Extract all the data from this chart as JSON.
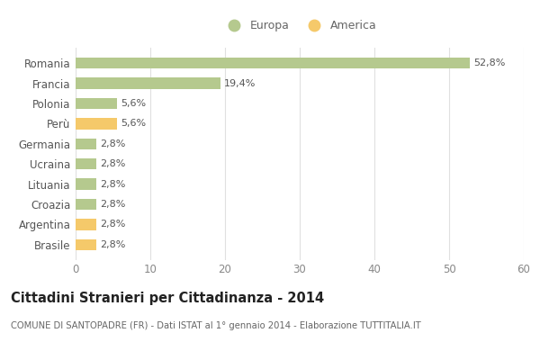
{
  "categories": [
    "Brasile",
    "Argentina",
    "Croazia",
    "Lituania",
    "Ucraina",
    "Germania",
    "Perù",
    "Polonia",
    "Francia",
    "Romania"
  ],
  "values": [
    2.8,
    2.8,
    2.8,
    2.8,
    2.8,
    2.8,
    5.6,
    5.6,
    19.4,
    52.8
  ],
  "labels": [
    "2,8%",
    "2,8%",
    "2,8%",
    "2,8%",
    "2,8%",
    "2,8%",
    "5,6%",
    "5,6%",
    "19,4%",
    "52,8%"
  ],
  "colors": [
    "#f5c96a",
    "#f5c96a",
    "#b5c98e",
    "#b5c98e",
    "#b5c98e",
    "#b5c98e",
    "#f5c96a",
    "#b5c98e",
    "#b5c98e",
    "#b5c98e"
  ],
  "europa_color": "#b5c98e",
  "america_color": "#f5c96a",
  "background_color": "#ffffff",
  "title": "Cittadini Stranieri per Cittadinanza - 2014",
  "subtitle": "COMUNE DI SANTOPADRE (FR) - Dati ISTAT al 1° gennaio 2014 - Elaborazione TUTTITALIA.IT",
  "xlim": [
    0,
    60
  ],
  "xticks": [
    0,
    10,
    20,
    30,
    40,
    50,
    60
  ],
  "legend_europa": "Europa",
  "legend_america": "America"
}
